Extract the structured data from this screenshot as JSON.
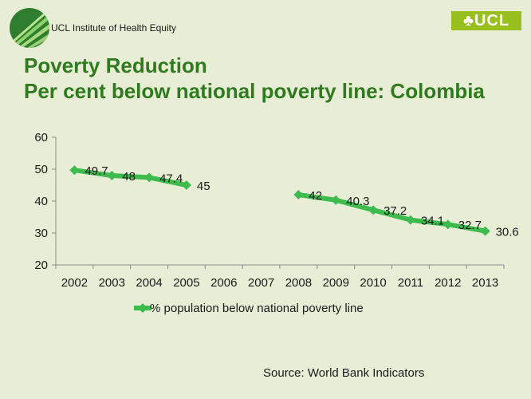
{
  "header": {
    "logo_text": "UCL Institute of Health Equity",
    "brand_text": "♣UCL"
  },
  "title": {
    "line1": "Poverty Reduction",
    "line2": "Per cent below national poverty line: Colombia"
  },
  "source": "Source: World Bank Indicators",
  "colors": {
    "title": "#2f7a1f",
    "series": "#3dbb4d",
    "background": "#e8edd6",
    "brand": "#97c01e"
  },
  "chart_data": {
    "type": "line",
    "title": "Per cent below national poverty line: Colombia",
    "xlabel": "",
    "ylabel": "",
    "categories": [
      "2002",
      "2003",
      "2004",
      "2005",
      "2006",
      "2007",
      "2008",
      "2009",
      "2010",
      "2011",
      "2012",
      "2013"
    ],
    "ylim": [
      20,
      60
    ],
    "yticks": [
      20,
      30,
      40,
      50,
      60
    ],
    "grid": false,
    "legend_position": "bottom",
    "series": [
      {
        "name": "% population below national poverty line",
        "values": [
          49.7,
          48,
          47.4,
          45,
          null,
          null,
          42,
          40.3,
          37.2,
          34.1,
          32.7,
          30.6
        ],
        "labels": [
          "49.7",
          "48",
          "47.4",
          "45",
          null,
          null,
          "42",
          "40.3",
          "37.2",
          "34.1",
          "32.7",
          "30.6"
        ]
      }
    ]
  }
}
